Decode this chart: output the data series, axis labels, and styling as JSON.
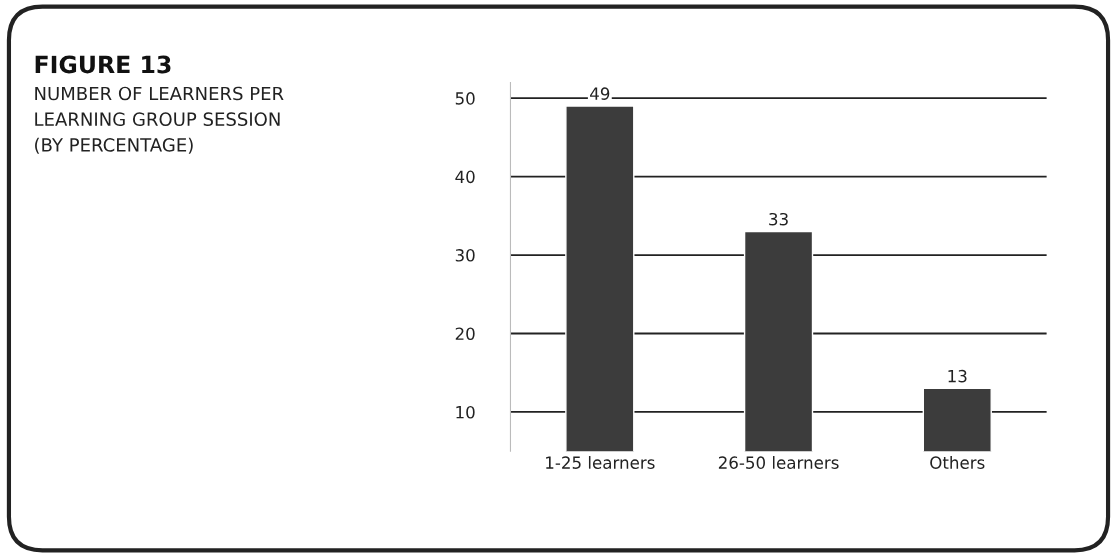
{
  "chart_data": {
    "type": "bar",
    "title": "FIGURE 13",
    "subtitle": "NUMBER OF LEARNERS PER\nLEARNING GROUP SESSION\n(BY PERCENTAGE)",
    "categories": [
      "1-25 learners",
      "26-50 learners",
      "Others"
    ],
    "values": [
      49,
      33,
      13
    ],
    "color": "#3c3c3c",
    "ylim": [
      5,
      52
    ],
    "yticks": [
      10,
      20,
      30,
      40,
      50
    ],
    "grid": "y",
    "data_labels": true
  }
}
